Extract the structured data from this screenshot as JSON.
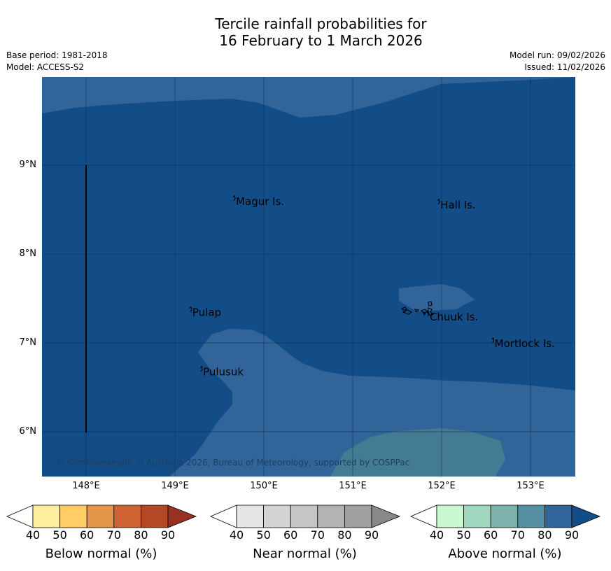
{
  "header": {
    "title_line1": "Tercile rainfall probabilities for",
    "title_line2": "16 February to 1 March 2026",
    "base_period": "Base period: 1981-2018",
    "model": "Model: ACCESS-S2",
    "model_run": "Model run: 09/02/2026",
    "issued": "Issued: 11/02/2026"
  },
  "map": {
    "lon_range": [
      147.5,
      153.5
    ],
    "lat_range": [
      5.5,
      10.0
    ],
    "lat_ticks": [
      {
        "value": 9,
        "label": "9°N"
      },
      {
        "value": 8,
        "label": "8°N"
      },
      {
        "value": 7,
        "label": "7°N"
      },
      {
        "value": 6,
        "label": "6°N"
      }
    ],
    "lon_ticks": [
      {
        "value": 148,
        "label": "148°E"
      },
      {
        "value": 149,
        "label": "149°E"
      },
      {
        "value": 150,
        "label": "150°E"
      },
      {
        "value": 151,
        "label": "151°E"
      },
      {
        "value": 152,
        "label": "152°E"
      },
      {
        "value": 153,
        "label": "153°E"
      }
    ],
    "places": [
      {
        "name": "Magur Is.",
        "lon": 149.67,
        "lat": 8.6
      },
      {
        "name": "Hall Is.",
        "lon": 151.97,
        "lat": 8.56
      },
      {
        "name": "Pulap",
        "lon": 149.18,
        "lat": 7.35
      },
      {
        "name": "Chuuk Is.",
        "lon": 151.85,
        "lat": 7.3
      },
      {
        "name": "Mortlock Is.",
        "lon": 152.58,
        "lat": 7.0
      },
      {
        "name": "Pulusuk",
        "lon": 149.3,
        "lat": 6.68
      }
    ],
    "copyright": "© Commonwealth of Australia 2026, Bureau of Meteorology, supported by COSPPac",
    "colors": {
      "above_80_90": "#134d87",
      "above_70_80": "#31659a",
      "above_60_70": "#437b93"
    }
  },
  "legend": {
    "ticks": [
      "40",
      "50",
      "60",
      "70",
      "80",
      "90"
    ],
    "bars": [
      {
        "title": "Below normal (%)",
        "colors": [
          "#ffeea0",
          "#ffcc66",
          "#e39648",
          "#cf6232",
          "#b24826",
          "#973122"
        ]
      },
      {
        "title": "Near normal (%)",
        "colors": [
          "#e6e6e6",
          "#d4d4d4",
          "#c6c6c6",
          "#b3b3b3",
          "#a0a0a0",
          "#888888"
        ]
      },
      {
        "title": "Above normal (%)",
        "colors": [
          "#c8f8cf",
          "#a2d7bf",
          "#7cb3ad",
          "#5790a2",
          "#31659a",
          "#134d87"
        ]
      }
    ]
  }
}
